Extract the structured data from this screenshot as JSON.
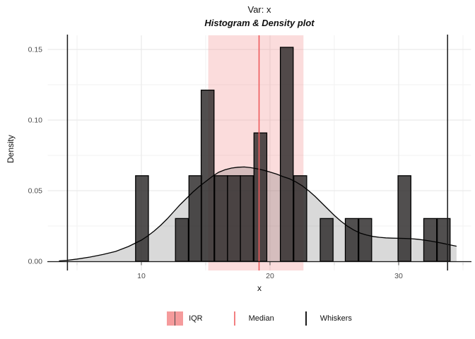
{
  "title": "Var: x",
  "subtitle": "Histogram & Density plot",
  "chart_data": {
    "type": "histogram+density",
    "title": "Var: x",
    "subtitle": "Histogram & Density plot",
    "xlabel": "x",
    "ylabel": "Density",
    "grid": true,
    "legend_position": "bottom",
    "x_axis": {
      "major_ticks": [
        10,
        20,
        30
      ],
      "tick_labels": [
        "10",
        "20",
        "30"
      ],
      "minor_ticks": [
        5,
        15,
        25,
        35
      ],
      "range": [
        2.7,
        35.6
      ]
    },
    "y_axis": {
      "major_ticks": [
        0,
        0.05,
        0.1,
        0.15
      ],
      "tick_labels": [
        "0.00",
        "0.05",
        "0.10",
        "0.15"
      ],
      "minor_ticks": [
        0.025,
        0.075,
        0.125
      ],
      "range": [
        -0.007,
        0.16
      ]
    },
    "histogram": {
      "binwidth": 1,
      "bins": [
        [
          10.05,
          0.0606
        ],
        [
          13.15,
          0.0303
        ],
        [
          14.2,
          0.0606
        ],
        [
          15.15,
          0.1212
        ],
        [
          16.2,
          0.0606
        ],
        [
          17.2,
          0.0606
        ],
        [
          18.2,
          0.0606
        ],
        [
          19.25,
          0.0909
        ],
        [
          21.3,
          0.1515
        ],
        [
          22.35,
          0.0606
        ],
        [
          24.4,
          0.0303
        ],
        [
          26.35,
          0.0303
        ],
        [
          27.4,
          0.0303
        ],
        [
          30.45,
          0.0606
        ],
        [
          32.45,
          0.0303
        ],
        [
          33.5,
          0.0303
        ]
      ]
    },
    "density_curve": [
      [
        3.6,
        0.0003
      ],
      [
        4.2,
        0.0007
      ],
      [
        5,
        0.0016
      ],
      [
        6,
        0.003
      ],
      [
        7,
        0.0048
      ],
      [
        8,
        0.007
      ],
      [
        9,
        0.0105
      ],
      [
        10,
        0.015
      ],
      [
        10.5,
        0.018
      ],
      [
        11,
        0.0215
      ],
      [
        11.5,
        0.0255
      ],
      [
        12,
        0.03
      ],
      [
        12.5,
        0.035
      ],
      [
        13,
        0.04
      ],
      [
        13.5,
        0.0445
      ],
      [
        14,
        0.049
      ],
      [
        14.5,
        0.053
      ],
      [
        15,
        0.0565
      ],
      [
        15.5,
        0.06
      ],
      [
        16,
        0.063
      ],
      [
        16.5,
        0.0648
      ],
      [
        17,
        0.066
      ],
      [
        17.5,
        0.0666
      ],
      [
        18,
        0.0668
      ],
      [
        18.5,
        0.0663
      ],
      [
        19,
        0.0655
      ],
      [
        19.5,
        0.0645
      ],
      [
        20,
        0.0632
      ],
      [
        20.5,
        0.0618
      ],
      [
        21,
        0.06
      ],
      [
        21.5,
        0.0585
      ],
      [
        22,
        0.0563
      ],
      [
        22.5,
        0.0535
      ],
      [
        23,
        0.05
      ],
      [
        23.5,
        0.046
      ],
      [
        24,
        0.0415
      ],
      [
        24.5,
        0.037
      ],
      [
        25,
        0.0325
      ],
      [
        25.5,
        0.0285
      ],
      [
        26,
        0.025
      ],
      [
        26.5,
        0.0222
      ],
      [
        27,
        0.02
      ],
      [
        27.5,
        0.0186
      ],
      [
        28,
        0.0176
      ],
      [
        28.5,
        0.017
      ],
      [
        29,
        0.0166
      ],
      [
        29.5,
        0.0164
      ],
      [
        30,
        0.0163
      ],
      [
        30.5,
        0.0162
      ],
      [
        31,
        0.016
      ],
      [
        31.5,
        0.0156
      ],
      [
        32,
        0.015
      ],
      [
        32.5,
        0.0143
      ],
      [
        33,
        0.0135
      ],
      [
        33.5,
        0.0126
      ],
      [
        34,
        0.0116
      ],
      [
        34.5,
        0.0107
      ]
    ],
    "annotations": {
      "iqr": {
        "from": 15.2,
        "to": 22.6
      },
      "median": 19.15,
      "whiskers": [
        4.25,
        33.8
      ]
    },
    "legend": {
      "items": [
        {
          "label": "IQR",
          "type": "box"
        },
        {
          "label": "Median",
          "type": "line"
        },
        {
          "label": "Whiskers",
          "type": "line"
        }
      ]
    },
    "colors": {
      "iqr_fill": "#f08080",
      "iqr_fill_alpha": 0.28,
      "median_line": "#ee5a5c",
      "whisker_line": "#1a1a1a",
      "bar_fill": "#2b2828",
      "bar_fill_alpha": 0.82,
      "bar_stroke": "#000000",
      "density_fill": "#404040",
      "density_fill_alpha": 0.2,
      "density_line": "#000000",
      "grid_major": "#e6e6e6",
      "grid_minor": "#f2f2f2",
      "axis_line": "#1a1a1a",
      "tick_label": "#4d4d4d",
      "legend_iqr_box": "#f59b9c",
      "legend_iqr_vline": "#4a4a4a",
      "legend_median_line": "#f28082",
      "legend_whisker_line": "#1a1a1a"
    }
  }
}
